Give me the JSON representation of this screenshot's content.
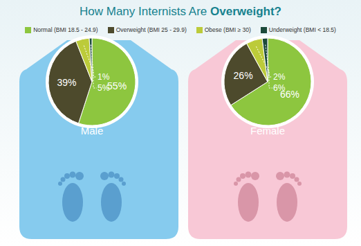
{
  "title": "How Many Internists Are Overweight?",
  "chart_data": [
    {
      "type": "pie",
      "title": "Male",
      "categories": [
        "Normal (BMI 18.5 - 24.9)",
        "Overweight (BMI 25 - 29.9)",
        "Obese (BMI ≥ 30)",
        "Underweight (BMI < 18.5)"
      ],
      "values": [
        55,
        39,
        5,
        1
      ],
      "value_labels": [
        "55%",
        "39%",
        "5%",
        "1%"
      ],
      "colors": [
        "#8dc63f",
        "#4d4a2c",
        "#bccb3a",
        "#1c4a3a"
      ],
      "data_labels": true,
      "legend": "top"
    },
    {
      "type": "pie",
      "title": "Female",
      "categories": [
        "Normal (BMI 18.5 - 24.9)",
        "Overweight (BMI 25 - 29.9)",
        "Obese (BMI ≥ 30)",
        "Underweight (BMI < 18.5)"
      ],
      "values": [
        66,
        26,
        6,
        2
      ],
      "value_labels": [
        "66%",
        "26%",
        "6%",
        "2%"
      ],
      "colors": [
        "#8dc63f",
        "#4d4a2c",
        "#bccb3a",
        "#1c4a3a"
      ],
      "data_labels": true,
      "legend": "top"
    }
  ]
}
